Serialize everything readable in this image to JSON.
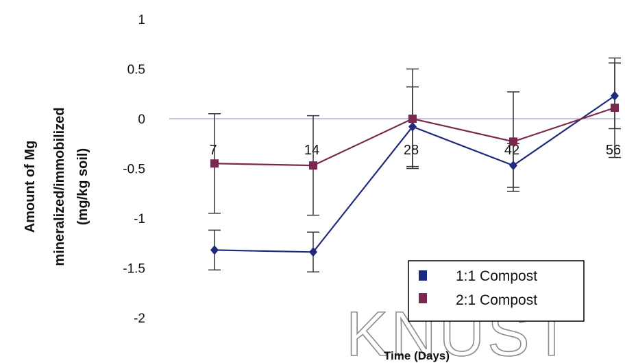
{
  "chart_data": {
    "type": "line",
    "title": "",
    "xlabel": "Time (Days)",
    "ylabel": [
      "Amount of Mg",
      "mineralized/immobilized",
      "(mg/kg soil)"
    ],
    "categories": [
      "7",
      "14",
      "28",
      "42",
      "56"
    ],
    "ylim": [
      -2,
      1
    ],
    "yticks": [
      "1",
      "0.5",
      "0",
      "-0.5",
      "-1",
      "-1.5",
      "-2"
    ],
    "legend_position": "bottom-right",
    "grid": false,
    "series": [
      {
        "name": "1:1 Compost",
        "color": "#1f2b7a",
        "marker": "diamond",
        "values": [
          -1.32,
          -1.34,
          -0.08,
          -0.47,
          0.23
        ],
        "error": [
          0.2,
          0.2,
          0.4,
          0.22,
          0.33
        ]
      },
      {
        "name": "2:1 Compost",
        "color": "#7a2850",
        "marker": "square",
        "values": [
          -0.45,
          -0.47,
          0.0,
          -0.23,
          0.11
        ],
        "error": [
          0.5,
          0.5,
          0.5,
          0.5,
          0.5
        ]
      }
    ]
  },
  "watermark": "KNUST"
}
